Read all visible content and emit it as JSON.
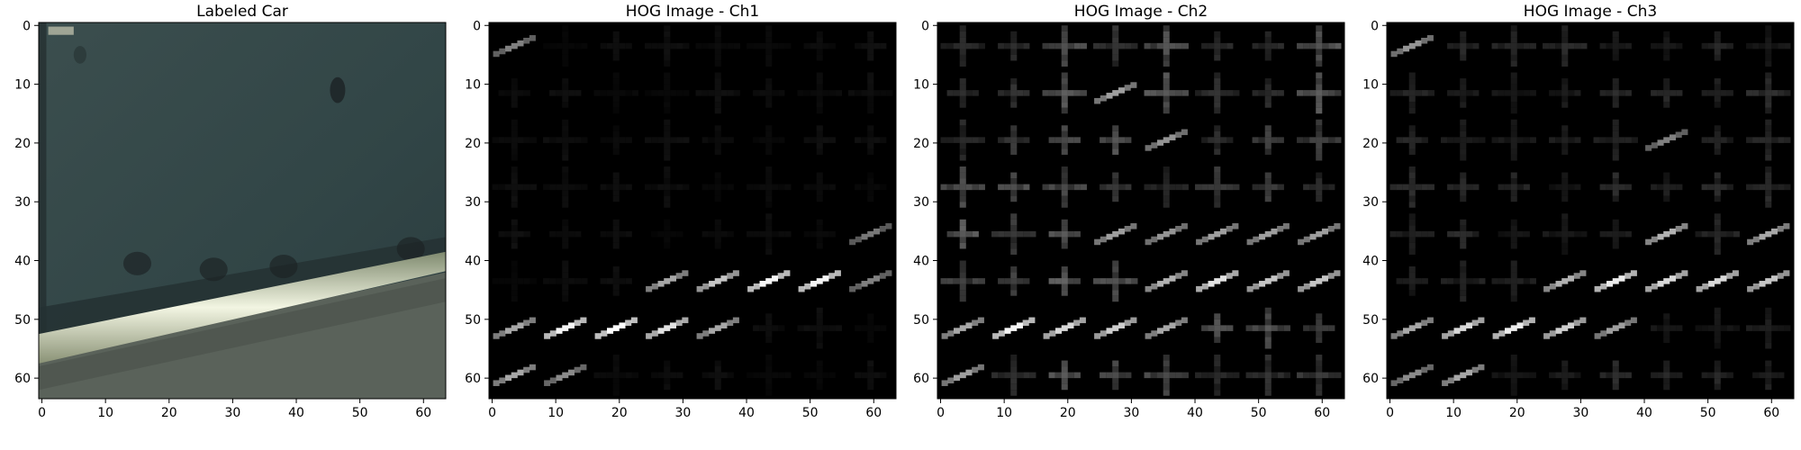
{
  "chart_data": [
    {
      "type": "heatmap",
      "title": "Labeled Car",
      "image_size": [
        64,
        64
      ],
      "xlim": [
        -0.5,
        63.5
      ],
      "ylim": [
        63.5,
        -0.5
      ],
      "xticks": [
        0,
        10,
        20,
        30,
        40,
        50,
        60
      ],
      "yticks": [
        0,
        10,
        20,
        30,
        40,
        50,
        60
      ],
      "colors": {
        "body": "#34484a",
        "highlight": "#e9edd8",
        "road": "#5a625a",
        "shadow": "#1b2224"
      }
    },
    {
      "type": "heatmap",
      "title": "HOG Image - Ch1",
      "image_size": [
        64,
        64
      ],
      "xlim": [
        -0.5,
        63.5
      ],
      "ylim": [
        63.5,
        -0.5
      ],
      "xticks": [
        0,
        10,
        20,
        30,
        40,
        50,
        60
      ],
      "yticks": [
        0,
        10,
        20,
        30,
        40,
        50,
        60
      ],
      "cell_grid": [
        8,
        8
      ],
      "colors": {
        "background": "#000000"
      }
    },
    {
      "type": "heatmap",
      "title": "HOG Image - Ch2",
      "image_size": [
        64,
        64
      ],
      "xlim": [
        -0.5,
        63.5
      ],
      "ylim": [
        63.5,
        -0.5
      ],
      "xticks": [
        0,
        10,
        20,
        30,
        40,
        50,
        60
      ],
      "yticks": [
        0,
        10,
        20,
        30,
        40,
        50,
        60
      ],
      "cell_grid": [
        8,
        8
      ],
      "colors": {
        "background": "#000000"
      }
    },
    {
      "type": "heatmap",
      "title": "HOG Image - Ch3",
      "image_size": [
        64,
        64
      ],
      "xlim": [
        -0.5,
        63.5
      ],
      "ylim": [
        63.5,
        -0.5
      ],
      "xticks": [
        0,
        10,
        20,
        30,
        40,
        50,
        60
      ],
      "yticks": [
        0,
        10,
        20,
        30,
        40,
        50,
        60
      ],
      "cell_grid": [
        8,
        8
      ],
      "colors": {
        "background": "#000000"
      }
    }
  ]
}
